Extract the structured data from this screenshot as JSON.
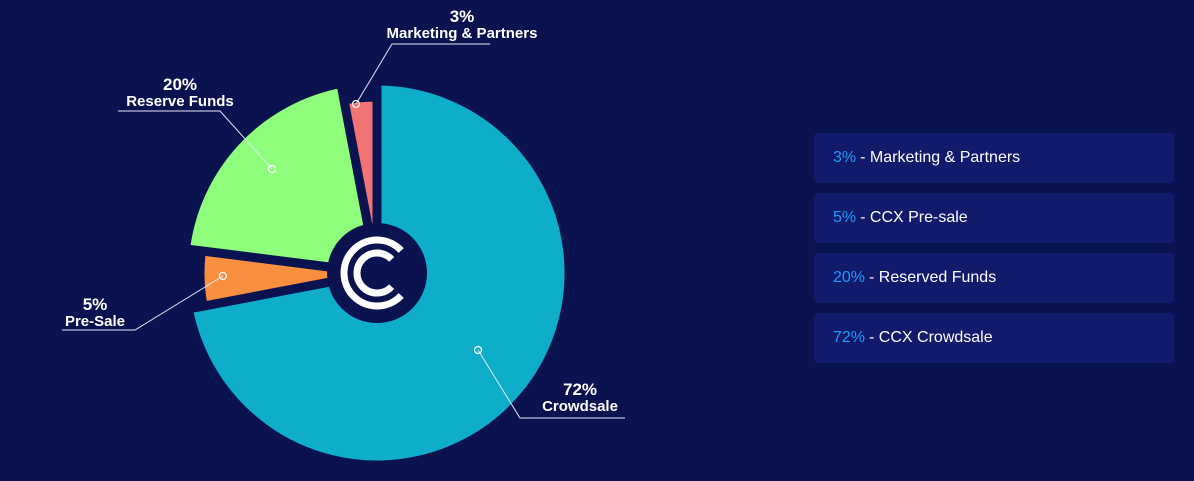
{
  "chart_data": {
    "type": "pie",
    "title": "",
    "slices": [
      {
        "label": "Crowdsale",
        "value": 72,
        "value_label": "72%",
        "color": "#0eadca"
      },
      {
        "label": "Pre-Sale",
        "value": 5,
        "value_label": "5%",
        "color": "#f78f3f"
      },
      {
        "label": "Reserve Funds",
        "value": 20,
        "value_label": "20%",
        "color": "#8ffd7c"
      },
      {
        "label": "Marketing & Partners",
        "value": 3,
        "value_label": "3%",
        "color": "#f27373"
      }
    ],
    "start_angle": "top",
    "direction": "clockwise",
    "center_logo": "ccx-logo",
    "legend": {
      "placement": "right",
      "items": [
        {
          "pct": "3%",
          "text": "- Marketing & Partners"
        },
        {
          "pct": "5%",
          "text": "- CCX Pre-sale"
        },
        {
          "pct": "20%",
          "text": "- Reserved Funds"
        },
        {
          "pct": "72%",
          "text": "- CCX Crowdsale"
        }
      ]
    }
  },
  "colors": {
    "background": "#0b1250",
    "legend_box": "#121a6b",
    "legend_pct": "#1e9bff"
  }
}
